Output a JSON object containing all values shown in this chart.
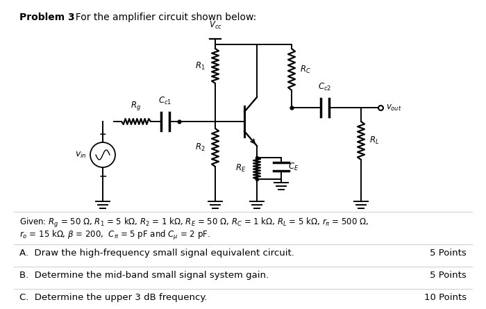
{
  "bg_color": "#ffffff",
  "title_bold": "Problem 3",
  "title_normal": "  For the amplifier circuit shown below:",
  "given_line1": "Given: $R_g$ = 50 $\\Omega$, $R_1$ = 5 k$\\Omega$, $R_2$ = 1 k$\\Omega$, $R_E$ = 50 $\\Omega$, $R_C$ = 1 k$\\Omega$, $R_L$ = 5 k$\\Omega$, $r_\\pi$ = 500 $\\Omega$,",
  "given_line2": "$r_o$ = 15 k$\\Omega$, $\\beta$ = 200,  $C_\\pi$ = 5 pF and $C_\\mu$ = 2 pF.",
  "partA": "A.  Draw the high-frequency small signal equivalent circuit.",
  "partA_pts": "5 Points",
  "partB": "B.  Determine the mid-band small signal system gain.",
  "partB_pts": "5 Points",
  "partC": "C.  Determine the upper 3 dB frequency.",
  "partC_pts": "10 Points"
}
